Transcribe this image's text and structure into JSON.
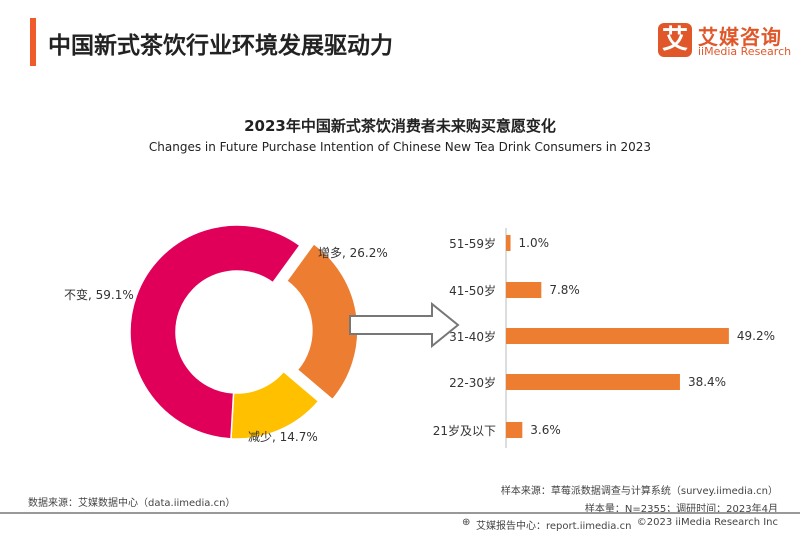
{
  "header": {
    "title": "中国新式茶饮行业环境发展驱动力",
    "logo_mark": "艾",
    "logo_cn": "艾媒咨询",
    "logo_en": "iiMedia Research"
  },
  "chart_data": [
    {
      "type": "pie",
      "variant": "donut",
      "title": "2023年中国新式茶饮消费者未来购买意愿变化",
      "subtitle": "Changes in Future Purchase Intention of Chinese New Tea Drink Consumers in 2023",
      "slices": [
        {
          "label": "增多",
          "value": 26.2,
          "display": "增多, 26.2%",
          "color": "#ED7D31",
          "exploded": true
        },
        {
          "label": "减少",
          "value": 14.7,
          "display": "减少, 14.7%",
          "color": "#FFC000"
        },
        {
          "label": "不变",
          "value": 59.1,
          "display": "不变, 59.1%",
          "color": "#E0005A"
        }
      ]
    },
    {
      "type": "bar",
      "orientation": "horizontal",
      "color": "#ED7D31",
      "categories": [
        "51-59岁",
        "41-50岁",
        "31-40岁",
        "22-30岁",
        "21岁及以下"
      ],
      "values": [
        1.0,
        7.8,
        49.2,
        38.4,
        3.6
      ],
      "data_labels": [
        "1.0%",
        "7.8%",
        "49.2%",
        "38.4%",
        "3.6%"
      ]
    }
  ],
  "footer": {
    "data_source": "数据来源：艾媒数据中心（data.iimedia.cn）",
    "sample_source": "样本来源：草莓派数据调查与计算系统（survey.iimedia.cn）",
    "sample_info": "样本量：N=2355；调研时间：2023年4月",
    "report_center": "艾媒报告中心：report.iimedia.cn",
    "copyright": "©2023  iiMedia Research  Inc"
  }
}
